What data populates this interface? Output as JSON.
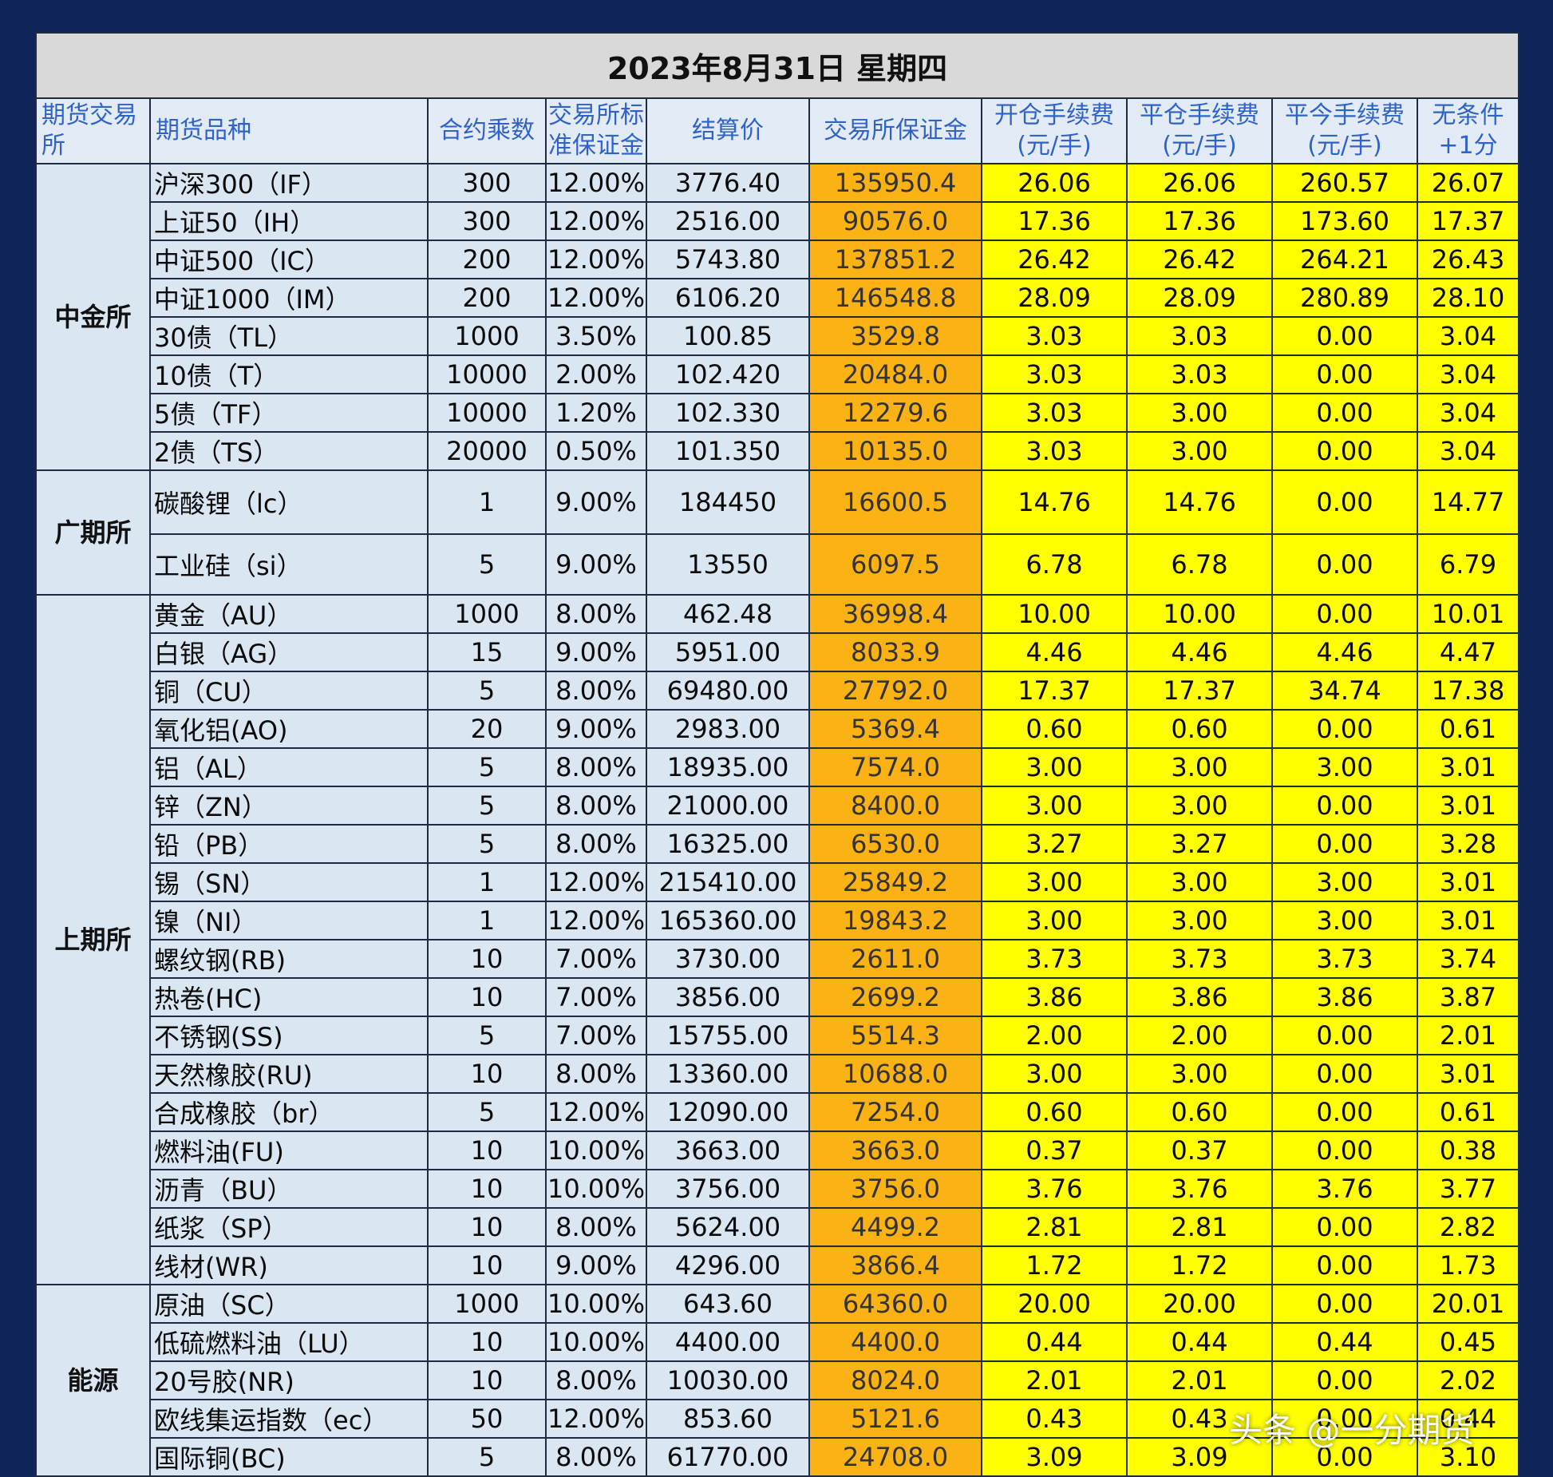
{
  "title": "2023年8月31日  星期四",
  "headers": {
    "exchange": "期货交易所",
    "product": "期货品种",
    "multiplier": "合约乘数",
    "margin_rate": "交易所标准保证金",
    "settle": "结算价",
    "margin": "交易所保证金",
    "open_fee_1": "开仓手续费",
    "open_fee_2": "(元/手)",
    "close_fee_1": "平仓手续费",
    "close_fee_2": "(元/手)",
    "today_fee_1": "平今手续费",
    "today_fee_2": "(元/手)",
    "extra_1": "无条件",
    "extra_2": "+1分"
  },
  "colors": {
    "background": "#0f2458",
    "header_text": "#2f63c7",
    "margin_col": "#fbb214",
    "fee_col": "#ffff00",
    "zhongjin": "#fbb90b",
    "guangqi": "#7030a0",
    "shangqi": "#9fc3e6",
    "nengyuan": "#a9d08e"
  },
  "exchanges": {
    "zhongjin": "中金所",
    "guangqi": "广期所",
    "shangqi": "上期所",
    "nengyuan": "能源"
  },
  "rows": [
    [
      "沪深300（IF）",
      "300",
      "12.00%",
      "3776.40",
      "135950.4",
      "26.06",
      "26.06",
      "260.57",
      "26.07"
    ],
    [
      "上证50（IH）",
      "300",
      "12.00%",
      "2516.00",
      "90576.0",
      "17.36",
      "17.36",
      "173.60",
      "17.37"
    ],
    [
      "中证500（IC）",
      "200",
      "12.00%",
      "5743.80",
      "137851.2",
      "26.42",
      "26.42",
      "264.21",
      "26.43"
    ],
    [
      "中证1000（IM）",
      "200",
      "12.00%",
      "6106.20",
      "146548.8",
      "28.09",
      "28.09",
      "280.89",
      "28.10"
    ],
    [
      "30债（TL）",
      "1000",
      "3.50%",
      "100.85",
      "3529.8",
      "3.03",
      "3.03",
      "0.00",
      "3.04"
    ],
    [
      "10债（T）",
      "10000",
      "2.00%",
      "102.420",
      "20484.0",
      "3.03",
      "3.03",
      "0.00",
      "3.04"
    ],
    [
      "5债（TF）",
      "10000",
      "1.20%",
      "102.330",
      "12279.6",
      "3.03",
      "3.00",
      "0.00",
      "3.04"
    ],
    [
      "2债（TS）",
      "20000",
      "0.50%",
      "101.350",
      "10135.0",
      "3.03",
      "3.00",
      "0.00",
      "3.04"
    ],
    [
      "碳酸锂（lc）",
      "1",
      "9.00%",
      "184450",
      "16600.5",
      "14.76",
      "14.76",
      "0.00",
      "14.77"
    ],
    [
      "工业硅（si）",
      "5",
      "9.00%",
      "13550",
      "6097.5",
      "6.78",
      "6.78",
      "0.00",
      "6.79"
    ],
    [
      "黄金（AU）",
      "1000",
      "8.00%",
      "462.48",
      "36998.4",
      "10.00",
      "10.00",
      "0.00",
      "10.01"
    ],
    [
      "白银（AG）",
      "15",
      "9.00%",
      "5951.00",
      "8033.9",
      "4.46",
      "4.46",
      "4.46",
      "4.47"
    ],
    [
      "铜（CU）",
      "5",
      "8.00%",
      "69480.00",
      "27792.0",
      "17.37",
      "17.37",
      "34.74",
      "17.38"
    ],
    [
      "氧化铝(AO)",
      "20",
      "9.00%",
      "2983.00",
      "5369.4",
      "0.60",
      "0.60",
      "0.00",
      "0.61"
    ],
    [
      "铝（AL）",
      "5",
      "8.00%",
      "18935.00",
      "7574.0",
      "3.00",
      "3.00",
      "3.00",
      "3.01"
    ],
    [
      "锌（ZN）",
      "5",
      "8.00%",
      "21000.00",
      "8400.0",
      "3.00",
      "3.00",
      "0.00",
      "3.01"
    ],
    [
      "铅（PB）",
      "5",
      "8.00%",
      "16325.00",
      "6530.0",
      "3.27",
      "3.27",
      "0.00",
      "3.28"
    ],
    [
      "锡（SN）",
      "1",
      "12.00%",
      "215410.00",
      "25849.2",
      "3.00",
      "3.00",
      "3.00",
      "3.01"
    ],
    [
      "镍（NI）",
      "1",
      "12.00%",
      "165360.00",
      "19843.2",
      "3.00",
      "3.00",
      "3.00",
      "3.01"
    ],
    [
      "螺纹钢(RB)",
      "10",
      "7.00%",
      "3730.00",
      "2611.0",
      "3.73",
      "3.73",
      "3.73",
      "3.74"
    ],
    [
      "热卷(HC)",
      "10",
      "7.00%",
      "3856.00",
      "2699.2",
      "3.86",
      "3.86",
      "3.86",
      "3.87"
    ],
    [
      "不锈钢(SS)",
      "5",
      "7.00%",
      "15755.00",
      "5514.3",
      "2.00",
      "2.00",
      "0.00",
      "2.01"
    ],
    [
      "天然橡胶(RU)",
      "10",
      "8.00%",
      "13360.00",
      "10688.0",
      "3.00",
      "3.00",
      "0.00",
      "3.01"
    ],
    [
      "合成橡胶（br）",
      "5",
      "12.00%",
      "12090.00",
      "7254.0",
      "0.60",
      "0.60",
      "0.00",
      "0.61"
    ],
    [
      "燃料油(FU)",
      "10",
      "10.00%",
      "3663.00",
      "3663.0",
      "0.37",
      "0.37",
      "0.00",
      "0.38"
    ],
    [
      "沥青（BU）",
      "10",
      "10.00%",
      "3756.00",
      "3756.0",
      "3.76",
      "3.76",
      "3.76",
      "3.77"
    ],
    [
      "纸浆（SP）",
      "10",
      "8.00%",
      "5624.00",
      "4499.2",
      "2.81",
      "2.81",
      "0.00",
      "2.82"
    ],
    [
      "线材(WR)",
      "10",
      "9.00%",
      "4296.00",
      "3866.4",
      "1.72",
      "1.72",
      "0.00",
      "1.73"
    ],
    [
      "原油（SC）",
      "1000",
      "10.00%",
      "643.60",
      "64360.0",
      "20.00",
      "20.00",
      "0.00",
      "20.01"
    ],
    [
      "低硫燃料油（LU）",
      "10",
      "10.00%",
      "4400.00",
      "4400.0",
      "0.44",
      "0.44",
      "0.44",
      "0.45"
    ],
    [
      "20号胶(NR)",
      "10",
      "8.00%",
      "10030.00",
      "8024.0",
      "2.01",
      "2.01",
      "0.00",
      "2.02"
    ],
    [
      "欧线集运指数（ec）",
      "50",
      "12.00%",
      "853.60",
      "5121.6",
      "0.43",
      "0.43",
      "0.00",
      "0.44"
    ],
    [
      "国际铜(BC)",
      "5",
      "8.00%",
      "61770.00",
      "24708.0",
      "3.09",
      "3.09",
      "0.00",
      "3.10"
    ]
  ],
  "watermark": "头条 @一分期货"
}
